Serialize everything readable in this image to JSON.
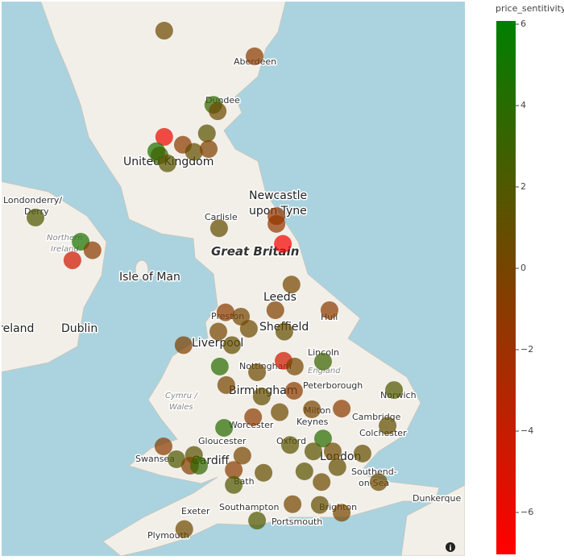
{
  "chart_data": {
    "type": "scattermap",
    "colorbar_title": "price_sentitivity",
    "lon": [
      -4.62,
      -2.1,
      -3.25,
      -3.13,
      -4.62,
      -3.43,
      -4.1,
      -4.84,
      -4.75,
      -3.79,
      -3.38,
      -4.53,
      -8.21,
      -6.95,
      -6.62,
      -7.18,
      -1.49,
      -1.49,
      -3.09,
      -1.31,
      -1.07,
      -1.52,
      -2.91,
      -0.01,
      -2.48,
      -3.11,
      -2.26,
      -1.27,
      -2.73,
      -4.08,
      -3.07,
      -1.29,
      -0.98,
      -0.19,
      -2.03,
      -2.89,
      -1.0,
      -1.9,
      1.79,
      -0.5,
      -1.4,
      -2.14,
      0.33,
      -2.95,
      1.61,
      -0.19,
      -1.11,
      -0.46,
      0.08,
      0.91,
      -4.64,
      -4.28,
      -3.79,
      -3.9,
      -3.65,
      -2.44,
      -2.68,
      -1.85,
      -0.71,
      0.21,
      -2.68,
      -0.23,
      1.36,
      -1.04,
      -0.28,
      0.33,
      -2.03,
      -4.06
    ],
    "lat": [
      57.51,
      57.15,
      56.47,
      56.38,
      56.02,
      56.07,
      55.91,
      55.82,
      55.76,
      55.81,
      55.85,
      55.65,
      54.89,
      54.55,
      54.43,
      54.29,
      54.91,
      54.8,
      54.74,
      54.52,
      53.95,
      53.59,
      53.56,
      53.59,
      53.5,
      53.29,
      53.33,
      53.29,
      53.1,
      53.1,
      52.8,
      52.88,
      52.8,
      52.87,
      52.72,
      52.54,
      52.46,
      52.38,
      52.47,
      52.2,
      52.16,
      52.09,
      52.21,
      51.94,
      51.97,
      51.79,
      51.7,
      51.61,
      51.61,
      51.58,
      51.68,
      51.5,
      51.56,
      51.41,
      51.41,
      51.55,
      51.35,
      51.31,
      51.33,
      51.39,
      51.14,
      51.18,
      51.18,
      50.87,
      50.86,
      50.75,
      50.64,
      50.52
    ],
    "values": [
      0.5,
      -1,
      3.5,
      0.5,
      -6,
      1.5,
      -1,
      4.5,
      3,
      1,
      -0.5,
      1.5,
      2,
      4.5,
      -1,
      -4.5,
      -1.5,
      -1.5,
      1,
      -6.5,
      0,
      -0.5,
      -1,
      -1,
      0,
      0,
      0.5,
      1,
      1,
      -0.5,
      4,
      -4.5,
      0,
      3,
      0.5,
      0,
      -1,
      1,
      2,
      0,
      0.5,
      -1,
      -1,
      4,
      1,
      4,
      1.5,
      1.5,
      0.5,
      1,
      -1,
      2,
      1.5,
      -0.5,
      3.5,
      0,
      -1,
      1,
      1.5,
      1,
      2,
      0.5,
      0.5,
      0,
      1,
      0,
      2,
      0.5
    ],
    "colorscale": [
      "#ff0000",
      "#008000"
    ],
    "clim": [
      -7.03,
      6.08
    ],
    "cticks": [
      6,
      4,
      2,
      0,
      {
        "value": -2,
        "label": "−2"
      },
      {
        "value": -4,
        "label": "−4"
      },
      {
        "value": -6,
        "label": "−6"
      }
    ],
    "map_labels": [
      "Aberdeen",
      "Dundee",
      "United Kingdom",
      "Londonderry/",
      "Derry",
      "Northern",
      "Ireland",
      "Newcastle",
      "upon Tyne",
      "Carlisle",
      "Great Britain",
      "Isle of Man",
      "Ireland",
      "Dublin",
      "Leeds",
      "Hull",
      "Preston",
      "Sheffield",
      "Liverpool",
      "Nottingham",
      "Lincoln",
      "England",
      "Peterborough",
      "Norwich",
      "Birmingham",
      "Cymru /",
      "Wales",
      "Worcester",
      "Milton",
      "Keynes",
      "Cambridge",
      "Colchester",
      "Gloucester",
      "Oxford",
      "Swansea",
      "Cardiff",
      "London",
      "Southend-",
      "on-Sea",
      "Bath",
      "Southampton",
      "Brighton",
      "Portsmouth",
      "Dunkerque",
      "Exeter",
      "Plymouth"
    ]
  }
}
